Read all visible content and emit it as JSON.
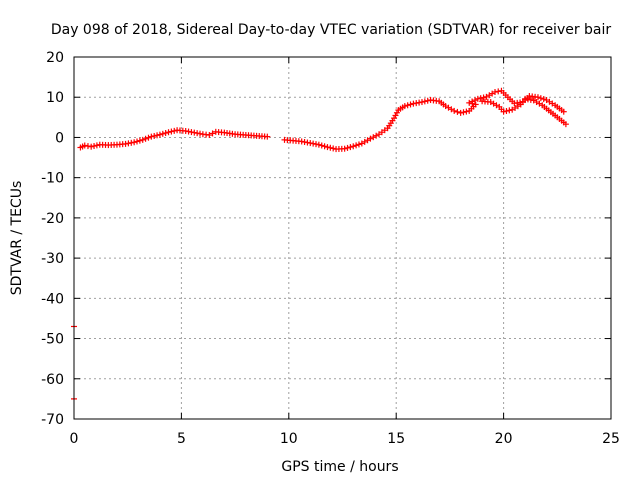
{
  "chart_data": {
    "type": "scatter",
    "title": "Day 098 of 2018, Sidereal Day-to-day VTEC variation (SDTVAR) for receiver bair",
    "xlabel": "GPS time / hours",
    "ylabel": "SDTVAR / TECUs",
    "xlim": [
      0,
      25
    ],
    "ylim": [
      -70,
      20
    ],
    "xticks": [
      0,
      5,
      10,
      15,
      20,
      25
    ],
    "yticks": [
      20,
      10,
      0,
      -10,
      -20,
      -30,
      -40,
      -50,
      -60,
      -70
    ],
    "xtick_labels": [
      "0",
      "5",
      "10",
      "15",
      "20",
      "25"
    ],
    "ytick_labels": [
      "20",
      "10",
      "0",
      "-10",
      "-20",
      "-30",
      "-40",
      "-50",
      "-60",
      "-70"
    ],
    "grid": true,
    "series_color": "#ff0000",
    "series": [
      {
        "name": "SDTVAR",
        "points": [
          [
            0.0,
            -47.0
          ],
          [
            0.0,
            -65.0
          ],
          [
            0.3,
            -2.5
          ],
          [
            0.5,
            -2.0
          ],
          [
            0.8,
            -2.3
          ],
          [
            1.2,
            -1.8
          ],
          [
            1.6,
            -1.9
          ],
          [
            2.0,
            -1.8
          ],
          [
            2.4,
            -1.6
          ],
          [
            2.8,
            -1.2
          ],
          [
            3.2,
            -0.6
          ],
          [
            3.6,
            0.2
          ],
          [
            4.0,
            0.7
          ],
          [
            4.4,
            1.3
          ],
          [
            4.8,
            1.8
          ],
          [
            5.2,
            1.6
          ],
          [
            5.6,
            1.2
          ],
          [
            6.0,
            0.8
          ],
          [
            6.3,
            0.6
          ],
          [
            6.6,
            1.4
          ],
          [
            7.0,
            1.2
          ],
          [
            7.5,
            0.8
          ],
          [
            8.0,
            0.6
          ],
          [
            8.5,
            0.4
          ],
          [
            9.0,
            0.2
          ],
          [
            9.8,
            -0.6
          ],
          [
            10.2,
            -0.8
          ],
          [
            10.6,
            -1.0
          ],
          [
            11.0,
            -1.4
          ],
          [
            11.4,
            -1.8
          ],
          [
            11.8,
            -2.4
          ],
          [
            12.2,
            -2.9
          ],
          [
            12.6,
            -2.8
          ],
          [
            13.0,
            -2.2
          ],
          [
            13.4,
            -1.5
          ],
          [
            13.8,
            -0.3
          ],
          [
            14.2,
            0.8
          ],
          [
            14.6,
            2.3
          ],
          [
            14.9,
            4.8
          ],
          [
            15.1,
            6.8
          ],
          [
            15.4,
            7.8
          ],
          [
            15.8,
            8.4
          ],
          [
            16.2,
            8.8
          ],
          [
            16.6,
            9.3
          ],
          [
            17.0,
            9.0
          ],
          [
            17.3,
            7.8
          ],
          [
            17.7,
            6.6
          ],
          [
            18.0,
            6.1
          ],
          [
            18.4,
            6.6
          ],
          [
            18.7,
            8.2
          ],
          [
            18.4,
            8.6
          ],
          [
            18.8,
            9.6
          ],
          [
            19.2,
            10.1
          ],
          [
            19.6,
            11.3
          ],
          [
            19.9,
            11.6
          ],
          [
            20.2,
            10.0
          ],
          [
            20.5,
            8.5
          ],
          [
            20.9,
            8.8
          ],
          [
            21.2,
            10.3
          ],
          [
            21.6,
            10.0
          ],
          [
            22.0,
            9.3
          ],
          [
            22.4,
            8.0
          ],
          [
            22.8,
            6.4
          ],
          [
            19.0,
            9.0
          ],
          [
            19.4,
            8.8
          ],
          [
            19.8,
            7.6
          ],
          [
            20.0,
            6.4
          ],
          [
            20.4,
            6.9
          ],
          [
            20.8,
            8.2
          ],
          [
            21.0,
            9.6
          ],
          [
            21.4,
            9.2
          ],
          [
            21.8,
            8.0
          ],
          [
            22.2,
            6.3
          ],
          [
            22.6,
            4.6
          ],
          [
            22.9,
            3.3
          ]
        ]
      }
    ]
  }
}
